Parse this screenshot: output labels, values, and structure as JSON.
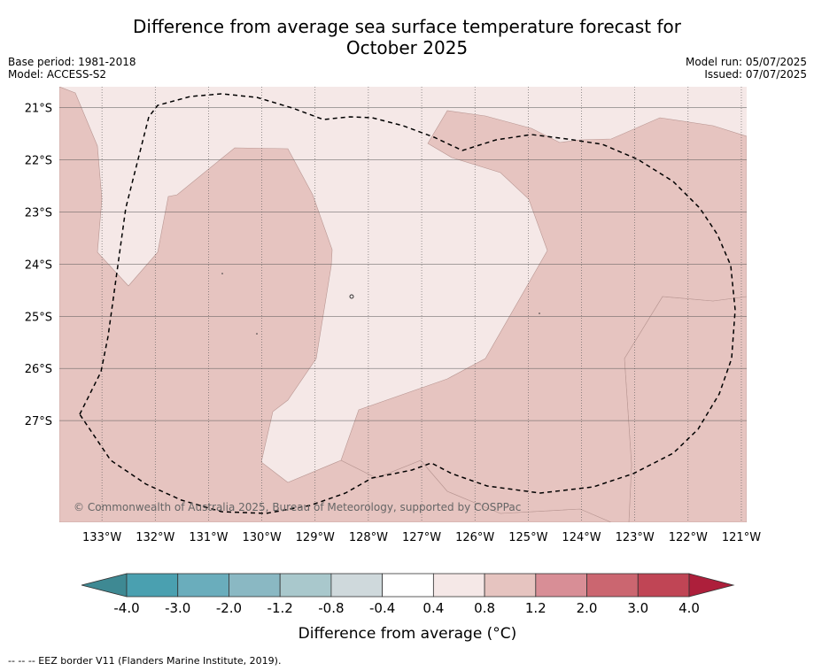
{
  "header": {
    "title_line1": "Difference from average sea surface temperature forecast for",
    "title_line2": "October 2025",
    "base_period": "Base period: 1981-2018",
    "model": "Model: ACCESS-S2",
    "model_run": "Model run: 05/07/2025",
    "issued": "Issued: 07/07/2025"
  },
  "copyright": "© Commonwealth of Australia 2025, Bureau of Meteorology, supported by COSPPac",
  "footnote": "--  --  -- EEZ border V11 (Flanders Marine Institute, 2019).",
  "colors": {
    "band_0_4_to_0_8": "#f5e8e7",
    "band_0_8_to_1_2": "#e6c4c0",
    "eez_border": "#000000"
  },
  "chart_data": {
    "type": "heatmap",
    "title": "Difference from average sea surface temperature forecast for October 2025",
    "lon_ticks": [
      "133°W",
      "132°W",
      "131°W",
      "130°W",
      "129°W",
      "128°W",
      "127°W",
      "126°W",
      "125°W",
      "124°W",
      "123°W",
      "122°W",
      "121°W"
    ],
    "lat_ticks": [
      "21°S",
      "22°S",
      "23°S",
      "24°S",
      "25°S",
      "26°S",
      "27°S"
    ],
    "xlim": [
      -133.8,
      -120.9
    ],
    "ylim": [
      -28.95,
      -20.6
    ],
    "grid": true,
    "regions": [
      {
        "band": "0.8 to 1.2",
        "description": "west strip and southern/eastern areas"
      },
      {
        "band": "0.4 to 0.8",
        "description": "central and northern areas, southeast"
      }
    ],
    "colorbar": {
      "label": "Difference from average (°C)",
      "ticks": [
        "-4.0",
        "-3.0",
        "-2.0",
        "-1.2",
        "-0.8",
        "-0.4",
        "0.4",
        "0.8",
        "1.2",
        "2.0",
        "3.0",
        "4.0"
      ],
      "colors": [
        "#3e8993",
        "#4aa0b0",
        "#6aadbc",
        "#8ab8c3",
        "#a9c8cc",
        "#cfd9dc",
        "#ffffff",
        "#f5e8e7",
        "#e6c4c0",
        "#d88e96",
        "#cb6670",
        "#c04555"
      ],
      "extend_low_color": "#3e8993",
      "extend_high_color": "#ad1f3b"
    }
  }
}
